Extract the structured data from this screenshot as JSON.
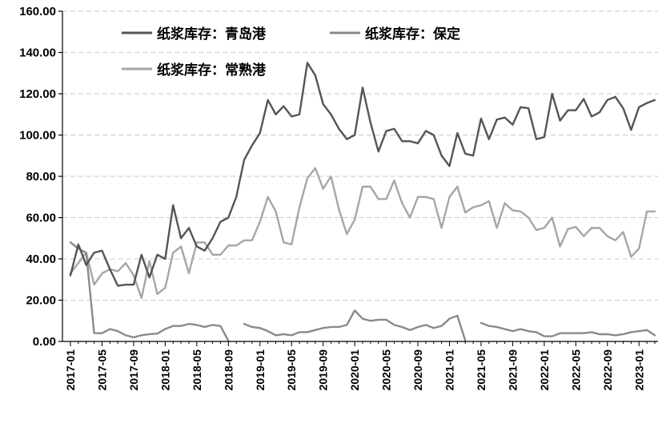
{
  "chart_data": {
    "type": "line",
    "title": "",
    "xlabel": "",
    "ylabel": "",
    "ylim": [
      0,
      160
    ],
    "y_ticks": [
      "0.00",
      "20.00",
      "40.00",
      "60.00",
      "80.00",
      "100.00",
      "120.00",
      "140.00",
      "160.00"
    ],
    "grid": "horizontal dashed",
    "legend_position": "top-left",
    "x": [
      "2017-01",
      "2017-02",
      "2017-03",
      "2017-04",
      "2017-05",
      "2017-06",
      "2017-07",
      "2017-08",
      "2017-09",
      "2017-10",
      "2017-11",
      "2017-12",
      "2018-01",
      "2018-02",
      "2018-03",
      "2018-04",
      "2018-05",
      "2018-06",
      "2018-07",
      "2018-08",
      "2018-09",
      "2018-10",
      "2018-11",
      "2018-12",
      "2019-01",
      "2019-02",
      "2019-03",
      "2019-04",
      "2019-05",
      "2019-06",
      "2019-07",
      "2019-08",
      "2019-09",
      "2019-10",
      "2019-11",
      "2019-12",
      "2020-01",
      "2020-02",
      "2020-03",
      "2020-04",
      "2020-05",
      "2020-06",
      "2020-07",
      "2020-08",
      "2020-09",
      "2020-10",
      "2020-11",
      "2020-12",
      "2021-01",
      "2021-02",
      "2021-03",
      "2021-04",
      "2021-05",
      "2021-06",
      "2021-07",
      "2021-08",
      "2021-09",
      "2021-10",
      "2021-11",
      "2021-12",
      "2022-01",
      "2022-02",
      "2022-03",
      "2022-04",
      "2022-05",
      "2022-06",
      "2022-07",
      "2022-08",
      "2022-09",
      "2022-10",
      "2022-11",
      "2022-12",
      "2023-01",
      "2023-02",
      "2023-03"
    ],
    "x_tick_labels": [
      "2017-01",
      "2017-05",
      "2017-09",
      "2018-01",
      "2018-05",
      "2018-09",
      "2019-01",
      "2019-05",
      "2019-09",
      "2020-01",
      "2020-05",
      "2020-09",
      "2021-01",
      "2021-05",
      "2021-09",
      "2022-01",
      "2022-05",
      "2022-09",
      "2023-01"
    ],
    "series": [
      {
        "name": "纸浆库存：青岛港",
        "color": "#555555",
        "values": [
          32,
          47,
          37,
          43,
          44,
          35,
          27,
          27.5,
          27.5,
          42,
          31,
          42,
          40,
          66,
          50,
          55,
          46,
          44,
          50,
          58,
          60,
          70,
          88,
          95,
          101,
          117,
          110,
          114,
          109,
          110,
          135,
          129,
          115,
          110,
          103,
          98,
          100,
          123,
          106,
          92,
          102,
          103,
          97,
          97,
          96,
          102,
          100,
          90,
          85,
          101,
          91,
          90,
          108,
          98,
          107.5,
          108.5,
          105,
          113.5,
          113,
          98,
          99,
          120,
          107,
          112,
          112,
          117.5,
          109,
          111,
          117,
          118.5,
          113,
          102.5,
          113.5,
          115.5,
          117
        ]
      },
      {
        "name": "纸浆库存：保定",
        "color": "#8a8a8a",
        "values": [
          48,
          45,
          43,
          4,
          4,
          6,
          5,
          3,
          2,
          3,
          3.5,
          3.8,
          6,
          7.5,
          7.5,
          8.5,
          8,
          7,
          8,
          7.5,
          0.3,
          null,
          8.5,
          7,
          6.5,
          5,
          3,
          3.5,
          3,
          4.5,
          4.5,
          5.5,
          6.5,
          7,
          7,
          8,
          15,
          11,
          10,
          10.5,
          10.5,
          8,
          7,
          5.5,
          7,
          8,
          6.5,
          7.5,
          11,
          12.5,
          0.5,
          null,
          9,
          7.5,
          7,
          6,
          5,
          6,
          5,
          4.5,
          2.5,
          2.5,
          4,
          4,
          4,
          4,
          4.5,
          3.5,
          3.5,
          3,
          3.5,
          4.5,
          5,
          5.5,
          3
        ]
      },
      {
        "name": "纸浆库存：常熟港",
        "color": "#a6a6a6",
        "values": [
          33,
          38,
          43,
          27.5,
          33,
          35,
          34,
          38,
          32,
          21,
          39,
          23,
          26,
          43,
          46,
          33,
          48,
          48,
          42,
          42,
          46.5,
          46.5,
          49,
          49,
          58,
          70,
          63,
          48,
          47,
          65,
          79,
          84,
          74,
          80,
          64,
          52,
          59,
          75,
          75,
          69,
          69,
          78,
          67,
          60,
          70,
          70,
          69,
          55,
          70,
          75,
          62.5,
          65,
          66,
          68,
          55,
          67,
          63.5,
          63,
          60,
          54,
          55,
          60,
          46,
          54.5,
          55.5,
          51,
          55,
          55,
          51,
          49,
          53,
          41,
          45,
          63,
          63
        ]
      }
    ]
  },
  "legend": {
    "qingdao": "纸浆库存：青岛港",
    "baoding": "纸浆库存：保定",
    "changshu": "纸浆库存：常熟港"
  }
}
